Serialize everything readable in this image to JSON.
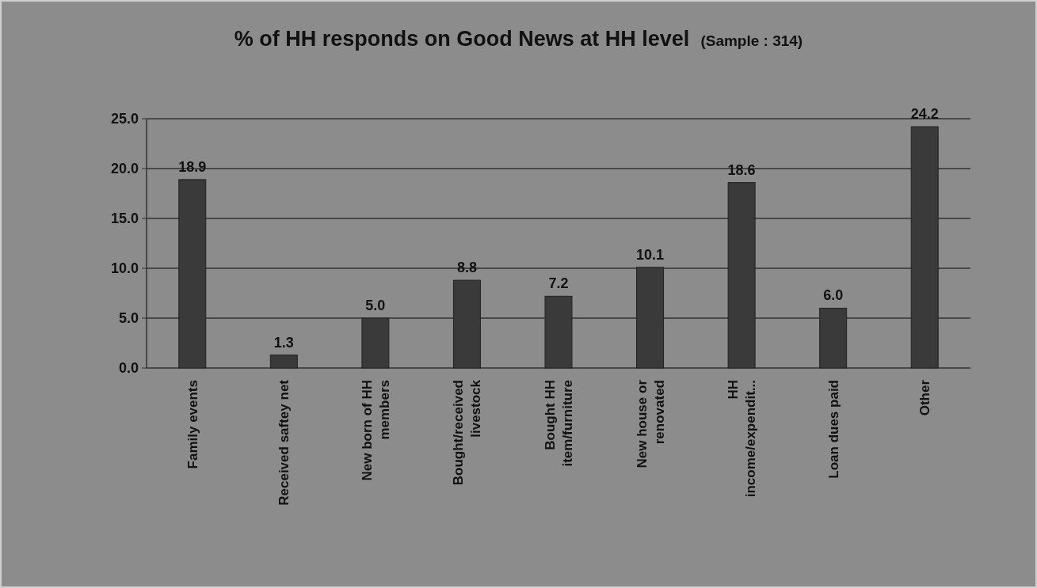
{
  "chart_data": {
    "type": "bar",
    "title": "% of HH responds on Good News at HH level",
    "subtitle": "(Sample : 314)",
    "categories": [
      "Family events",
      "Received saftey net",
      "New born of HH members",
      "Bought/received livestock",
      "Bought HH item/furniture",
      "New house or renovated",
      "HH income/expendit...",
      "Loan dues paid",
      "Other"
    ],
    "values": [
      18.9,
      1.3,
      5.0,
      8.8,
      7.2,
      10.1,
      18.6,
      6.0,
      24.2
    ],
    "color": "#3a3a3a",
    "ylim": [
      0,
      25
    ],
    "yticks": [
      {
        "value": 0,
        "label": "0.0"
      },
      {
        "value": 5,
        "label": "5.0"
      },
      {
        "value": 10,
        "label": "10.0"
      },
      {
        "value": 15,
        "label": "15.0"
      },
      {
        "value": 20,
        "label": "20.0"
      },
      {
        "value": 25,
        "label": "25.0"
      }
    ],
    "value_labels": [
      "18.9",
      "1.3",
      "5.0",
      "8.8",
      "7.2",
      "10.1",
      "18.6",
      "6.0",
      "24.2"
    ],
    "grid": true
  }
}
